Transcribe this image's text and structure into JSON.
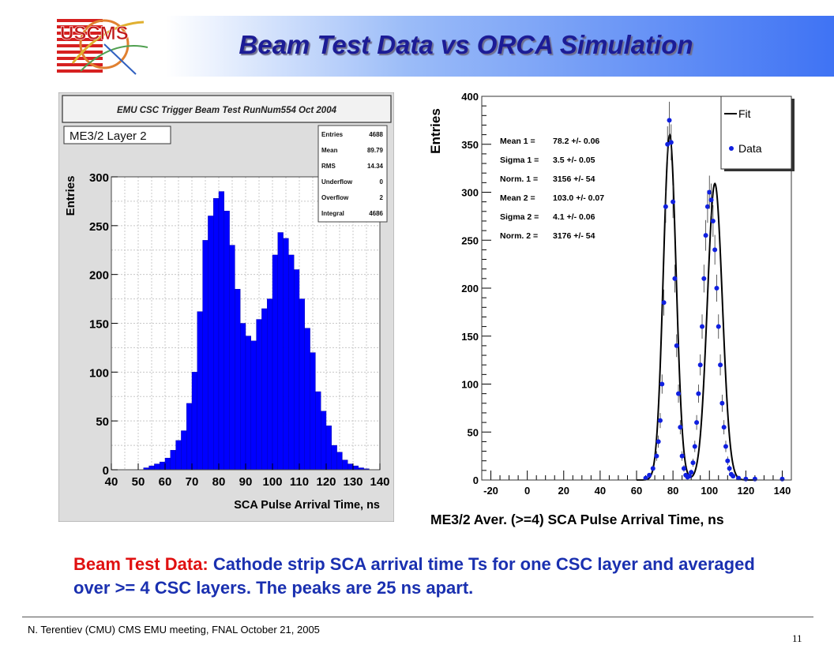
{
  "slide": {
    "title": "Beam Test Data vs ORCA Simulation",
    "logo_text": "USCMS",
    "caption_lead": "Beam Test Data:",
    "caption_body": "Cathode strip SCA arrival time Ts for one CSC layer and averaged over >= 4 CSC layers. The peaks are 25 ns apart.",
    "footer": "N. Terentiev  (CMU)  CMS EMU meeting,  FNAL  October 21, 2005",
    "page_number": "11",
    "colors": {
      "banner_blue": "#3f73f4",
      "title": "#1c1c96",
      "caption": "#1a30b0",
      "caption_lead": "#e01010",
      "histogram_fill": "#0000ff"
    }
  },
  "chart_data": [
    {
      "type": "bar",
      "title": "EMU CSC Trigger Beam Test RunNum554 Oct 2004",
      "subtitle": "ME3/2 Layer 2",
      "xlabel": "SCA Pulse Arrival Time, ns",
      "ylabel": "Entries",
      "xlim": [
        40,
        140
      ],
      "ylim": [
        0,
        300
      ],
      "x_ticks": [
        "40",
        "50",
        "60",
        "70",
        "80",
        "90",
        "100",
        "110",
        "120",
        "130",
        "140"
      ],
      "y_ticks": [
        "0",
        "50",
        "100",
        "150",
        "200",
        "250",
        "300"
      ],
      "grid": true,
      "bin_width": 2,
      "bin_starts": [
        52,
        54,
        56,
        58,
        60,
        62,
        64,
        66,
        68,
        70,
        72,
        74,
        76,
        78,
        80,
        82,
        84,
        86,
        88,
        90,
        92,
        94,
        96,
        98,
        100,
        102,
        104,
        106,
        108,
        110,
        112,
        114,
        116,
        118,
        120,
        122,
        124,
        126,
        128,
        130,
        132,
        134
      ],
      "values": [
        2,
        4,
        6,
        8,
        12,
        20,
        30,
        40,
        68,
        100,
        162,
        235,
        260,
        278,
        285,
        265,
        230,
        185,
        150,
        137,
        132,
        154,
        165,
        175,
        220,
        243,
        237,
        220,
        205,
        175,
        145,
        120,
        80,
        60,
        45,
        25,
        18,
        10,
        6,
        4,
        2,
        1
      ],
      "stats": [
        {
          "label": "Entries",
          "value": "4688"
        },
        {
          "label": "Mean",
          "value": "89.79"
        },
        {
          "label": "RMS",
          "value": "14.34"
        },
        {
          "label": "Underflow",
          "value": "0"
        },
        {
          "label": "Overflow",
          "value": "2"
        },
        {
          "label": "Integral",
          "value": "4686"
        }
      ]
    },
    {
      "type": "scatter",
      "xlabel": "ME3/2 Aver. (>=4) SCA Pulse Arrival Time, ns",
      "ylabel": "Entries",
      "xlim": [
        -25,
        145
      ],
      "ylim": [
        0,
        400
      ],
      "x_ticks": [
        "-20",
        "0",
        "20",
        "40",
        "60",
        "80",
        "100",
        "120",
        "140"
      ],
      "y_ticks": [
        "0",
        "50",
        "100",
        "150",
        "200",
        "250",
        "300",
        "350",
        "400"
      ],
      "legend": {
        "position": "top-right",
        "entries": [
          {
            "name": "Fit",
            "style": "line"
          },
          {
            "name": "Data",
            "style": "marker"
          }
        ]
      },
      "fit_params": [
        {
          "label": "Mean  1 =",
          "value": "78.2 +/- 0.06"
        },
        {
          "label": "Sigma 1 =",
          "value": "3.5 +/- 0.05"
        },
        {
          "label": "Norm. 1 =",
          "value": "3156 +/-  54"
        },
        {
          "label": "Mean  2 =",
          "value": "103.0 +/- 0.07"
        },
        {
          "label": "Sigma 2 =",
          "value": "4.1 +/- 0.06"
        },
        {
          "label": "Norm. 2 =",
          "value": "3176 +/-  54"
        }
      ],
      "fit_curve": {
        "peaks": [
          {
            "mean": 78.2,
            "sigma": 3.5,
            "norm": 3156
          },
          {
            "mean": 103.0,
            "sigma": 4.1,
            "norm": 3176
          }
        ]
      },
      "series": [
        {
          "name": "Data",
          "x": [
            65,
            67,
            69,
            71,
            72,
            73,
            74,
            75,
            76,
            77,
            78,
            79,
            80,
            81,
            82,
            83,
            84,
            85,
            86,
            87,
            88,
            89,
            90,
            91,
            92,
            93,
            94,
            95,
            96,
            97,
            98,
            99,
            100,
            101,
            102,
            103,
            104,
            105,
            106,
            107,
            108,
            109,
            110,
            111,
            112,
            113,
            116,
            120,
            125,
            140
          ],
          "y": [
            2,
            5,
            12,
            25,
            40,
            62,
            100,
            185,
            285,
            350,
            375,
            352,
            290,
            210,
            140,
            90,
            55,
            25,
            12,
            5,
            3,
            4,
            8,
            18,
            35,
            60,
            90,
            120,
            160,
            210,
            255,
            285,
            300,
            292,
            270,
            240,
            200,
            160,
            120,
            80,
            55,
            35,
            20,
            12,
            6,
            4,
            2,
            1,
            1,
            1
          ]
        }
      ]
    }
  ]
}
